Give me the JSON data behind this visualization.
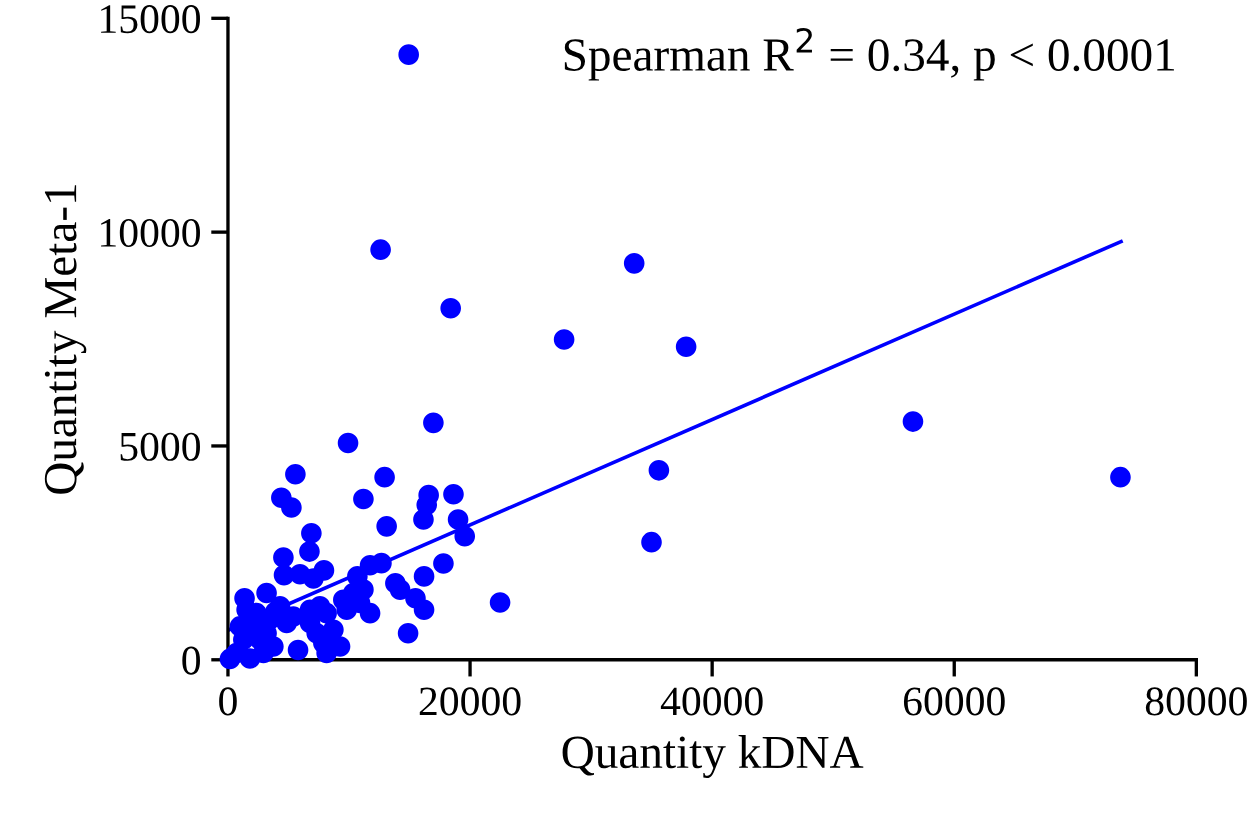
{
  "chart_data": {
    "type": "scatter",
    "xlabel": "Quantity kDNA",
    "ylabel": "Quantity Meta-1",
    "annotations": [
      "Spearman R$^{2}$ = 0.34, p < 0.0001"
    ],
    "xlim": [
      0,
      80000
    ],
    "ylim": [
      0,
      15000
    ],
    "xticks": [
      0,
      20000,
      40000,
      60000,
      80000
    ],
    "yticks": [
      0,
      5000,
      10000,
      15000
    ],
    "grid": false,
    "marker": "circle",
    "series": [
      {
        "color": "#0000ff",
        "x": [
          14930,
          12610,
          18400,
          27770,
          33560,
          37850,
          56590,
          73730,
          35600,
          34990,
          22480,
          16970,
          9920,
          5570,
          12940,
          4410,
          5240,
          11190,
          16580,
          16420,
          18630,
          16150,
          19010,
          19560,
          13110,
          6890,
          6730,
          4580,
          12680,
          11740,
          17800,
          7930,
          4630,
          5950,
          7060,
          10690,
          13830,
          14220,
          16200,
          15490,
          16200,
          1370,
          3190,
          4300,
          5400,
          4850,
          3920,
          6780,
          7600,
          8150,
          6780,
          7330,
          8710,
          7880,
          9260,
          9530,
          10360,
          11190,
          10910,
          11740,
          9810,
          14880,
          5790,
          8150,
          165,
          710,
          1270,
          2100,
          2650,
          3190,
          3470,
          2360,
          990,
          1820,
          3750,
          2930,
          1540
        ],
        "values": [
          14150,
          9590,
          8220,
          7490,
          9270,
          7320,
          5570,
          4270,
          4430,
          2750,
          1340,
          5540,
          5070,
          4340,
          4270,
          3790,
          3560,
          3760,
          3850,
          3620,
          3870,
          3280,
          3280,
          2890,
          3120,
          2960,
          2530,
          2390,
          2260,
          2210,
          2250,
          2090,
          1980,
          2000,
          1900,
          1950,
          1790,
          1640,
          1950,
          1440,
          1170,
          1440,
          1560,
          1250,
          1010,
          860,
          1120,
          1170,
          1250,
          1090,
          860,
          620,
          700,
          390,
          310,
          1400,
          1560,
          1640,
          1330,
          1090,
          1170,
          620,
          230,
          160,
          20,
          160,
          470,
          780,
          470,
          620,
          940,
          1090,
          780,
          30,
          310,
          160,
          1170
        ]
      },
      {
        "type": "line",
        "color": "#0000ff",
        "marker": "none",
        "line_style": "solid",
        "x": [
          0,
          73780
        ],
        "values": [
          690,
          9780
        ]
      }
    ]
  }
}
